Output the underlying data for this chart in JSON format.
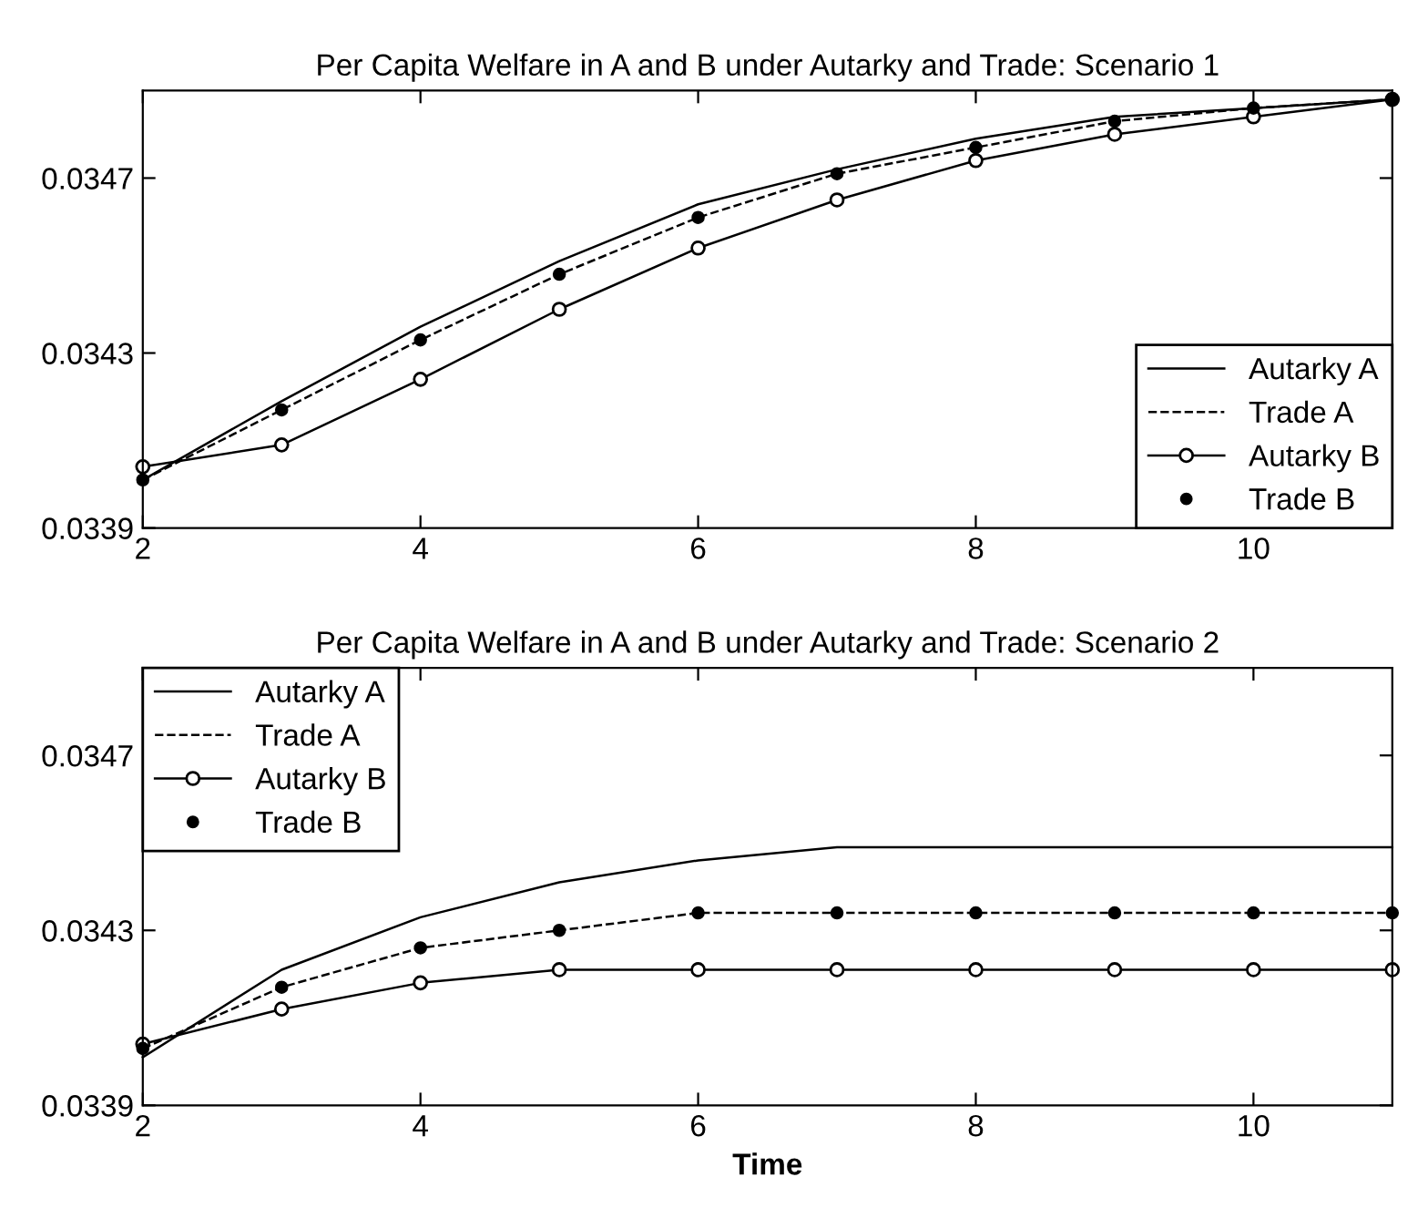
{
  "chart_data": [
    {
      "type": "line",
      "title": "Per Capita Welfare in A and B under Autarky and Trade: Scenario 1",
      "x": [
        2,
        3,
        4,
        5,
        6,
        7,
        8,
        9,
        10,
        11
      ],
      "xlim": [
        2,
        11
      ],
      "xticks": [
        2,
        4,
        6,
        8,
        10
      ],
      "ylim": [
        0.0339,
        0.0349
      ],
      "yticks": [
        0.0339,
        0.0343,
        0.0347
      ],
      "legend": "bottom right",
      "grid": false,
      "series": [
        {
          "name": "Autarky A",
          "color": "#000000",
          "line_style": "solid",
          "marker": "none",
          "values": [
            0.03401,
            0.03419,
            0.03436,
            0.03451,
            0.03464,
            0.03472,
            0.03479,
            0.03484,
            0.03486,
            0.03488
          ]
        },
        {
          "name": "Trade A",
          "color": "#000000",
          "line_style": "dashed",
          "marker": "none",
          "values": [
            0.03401,
            0.03417,
            0.03433,
            0.03448,
            0.03461,
            0.03471,
            0.03477,
            0.03483,
            0.03486,
            0.03488
          ]
        },
        {
          "name": "Autarky B",
          "color": "#000000",
          "line_style": "solid",
          "marker": "circle",
          "values": [
            0.03404,
            0.03409,
            0.03424,
            0.0344,
            0.03454,
            0.03465,
            0.03474,
            0.0348,
            0.03484,
            0.03488
          ]
        },
        {
          "name": "Trade B",
          "type": "scatter",
          "color": "#000000",
          "marker": "circle",
          "values": [
            0.03401,
            0.03417,
            0.03433,
            0.03448,
            0.03461,
            0.03471,
            0.03477,
            0.03483,
            0.03486,
            0.03488
          ]
        }
      ]
    },
    {
      "type": "line",
      "title": "Per Capita Welfare in A and B under Autarky and Trade: Scenario 2",
      "xlabel": "Time",
      "x": [
        2,
        3,
        4,
        5,
        6,
        7,
        8,
        9,
        10,
        11
      ],
      "xlim": [
        2,
        11
      ],
      "xticks": [
        2,
        4,
        6,
        8,
        10
      ],
      "ylim": [
        0.0339,
        0.0349
      ],
      "yticks": [
        0.0339,
        0.0343,
        0.0347
      ],
      "legend": "top left",
      "grid": false,
      "series": [
        {
          "name": "Autarky A",
          "color": "#000000",
          "line_style": "solid",
          "marker": "none",
          "values": [
            0.03401,
            0.03421,
            0.03433,
            0.03441,
            0.03446,
            0.03449,
            0.03449,
            0.03449,
            0.03449,
            0.03449
          ]
        },
        {
          "name": "Trade A",
          "color": "#000000",
          "line_style": "dashed",
          "marker": "none",
          "values": [
            0.03403,
            0.03417,
            0.03426,
            0.0343,
            0.03434,
            0.03434,
            0.03434,
            0.03434,
            0.03434,
            0.03434
          ]
        },
        {
          "name": "Autarky B",
          "color": "#000000",
          "line_style": "solid",
          "marker": "circle",
          "values": [
            0.03404,
            0.03412,
            0.03418,
            0.03421,
            0.03421,
            0.03421,
            0.03421,
            0.03421,
            0.03421,
            0.03421
          ]
        },
        {
          "name": "Trade B",
          "type": "scatter",
          "color": "#000000",
          "marker": "circle",
          "values": [
            0.03403,
            0.03417,
            0.03426,
            0.0343,
            0.03434,
            0.03434,
            0.03434,
            0.03434,
            0.03434,
            0.03434
          ]
        }
      ]
    }
  ]
}
